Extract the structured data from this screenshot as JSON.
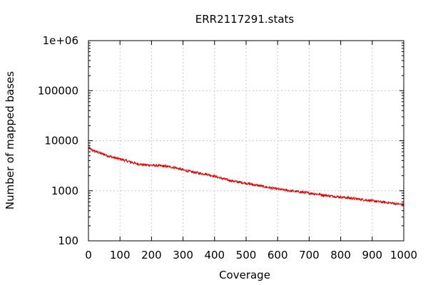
{
  "chart_data": {
    "type": "line",
    "title": "ERR2117291.stats",
    "xlabel": "Coverage",
    "ylabel": "Number of mapped bases",
    "xlim": [
      0,
      1000
    ],
    "ylim": [
      100,
      1000000
    ],
    "yscale": "log",
    "grid": true,
    "xticks": [
      0,
      100,
      200,
      300,
      400,
      500,
      600,
      700,
      800,
      900,
      1000
    ],
    "xtick_labels": [
      "0",
      "100",
      "200",
      "300",
      "400",
      "500",
      "600",
      "700",
      "800",
      "900",
      "1000"
    ],
    "yticks": [
      100,
      1000,
      10000,
      100000,
      1000000
    ],
    "ytick_labels": [
      "100",
      "1000",
      "10000",
      "100000",
      "1e+06"
    ],
    "series": [
      {
        "color": "#e00000",
        "x": [
          0,
          10,
          25,
          50,
          75,
          100,
          125,
          150,
          175,
          200,
          225,
          250,
          275,
          300,
          325,
          350,
          375,
          400,
          425,
          450,
          475,
          500,
          525,
          550,
          575,
          600,
          625,
          650,
          675,
          700,
          725,
          750,
          775,
          800,
          825,
          850,
          875,
          900,
          925,
          950,
          975,
          1000
        ],
        "y": [
          7200,
          6600,
          6000,
          5300,
          4700,
          4300,
          3900,
          3500,
          3300,
          3250,
          3150,
          3050,
          2900,
          2600,
          2400,
          2250,
          2150,
          1950,
          1750,
          1600,
          1500,
          1420,
          1320,
          1230,
          1150,
          1080,
          1030,
          980,
          940,
          900,
          860,
          810,
          780,
          750,
          720,
          690,
          660,
          630,
          600,
          580,
          550,
          530
        ]
      }
    ]
  }
}
